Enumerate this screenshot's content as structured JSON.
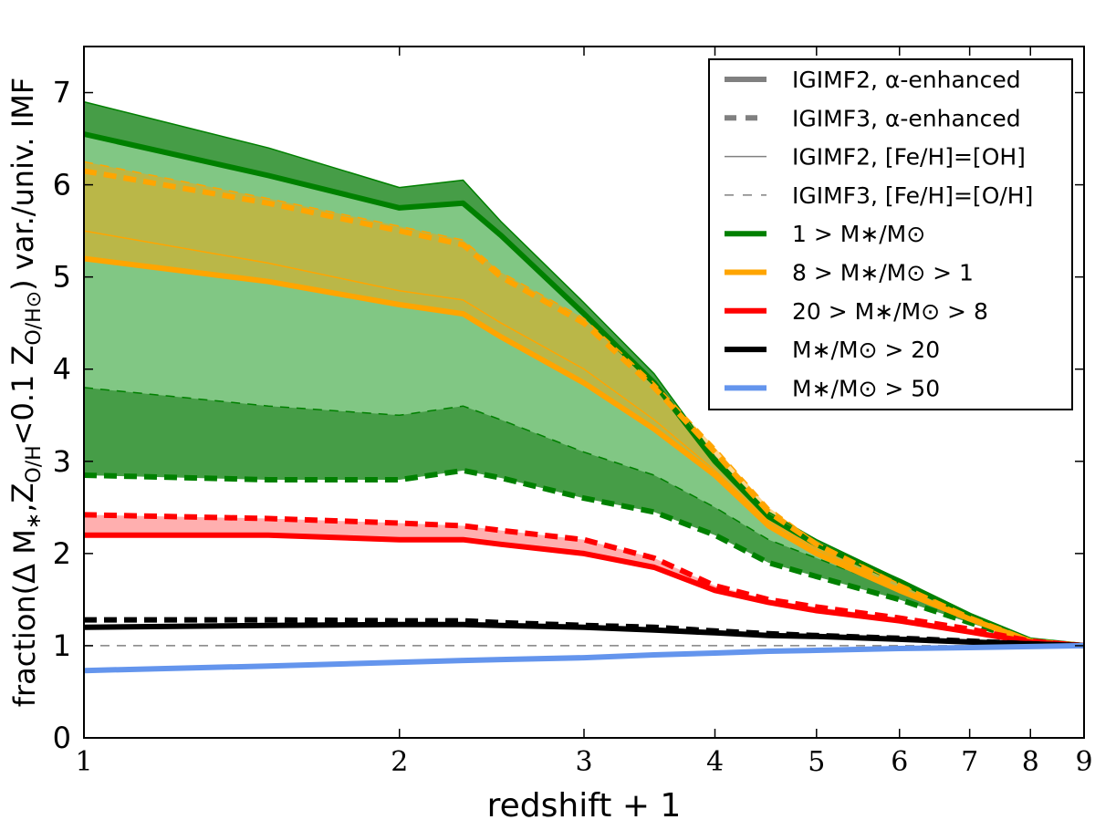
{
  "chart_data": {
    "type": "line",
    "xlabel": "redshift + 1",
    "ylabel": "fraction(Δ M∗,Z_O/H<0.1 Z_O/H⊙) var./univ. IMF",
    "ylabel_parts": [
      "fraction(Δ M",
      "∗",
      ",Z",
      "O/H",
      "<0.1 Z",
      "O/H⊙",
      ") var./univ. IMF"
    ],
    "xscale": "log",
    "xlim": [
      1,
      9
    ],
    "ylim": [
      0,
      7.5
    ],
    "xticks": [
      1,
      2,
      3,
      4,
      5,
      6,
      7,
      8,
      9
    ],
    "yticks": [
      0,
      1,
      2,
      3,
      4,
      5,
      6,
      7
    ],
    "grid": false,
    "legend_placement": "top-right",
    "reference_line": {
      "y": 1,
      "color": "#808080",
      "style": "dashed"
    },
    "x": [
      1,
      1.5,
      2,
      2.3,
      2.5,
      3,
      3.5,
      4,
      4.5,
      5,
      6,
      7,
      8,
      9
    ],
    "series": [
      {
        "group": "1 > M∗/M⊙",
        "model": "IGIMF2, [Fe/H]=[OH]",
        "color": "#008000",
        "style": "thin-solid",
        "values": [
          6.9,
          6.4,
          5.97,
          6.05,
          5.6,
          4.72,
          3.95,
          3.05,
          2.45,
          2.15,
          1.72,
          1.35,
          1.07,
          1.0
        ]
      },
      {
        "group": "1 > M∗/M⊙",
        "model": "IGIMF2, α-enhanced",
        "color": "#008000",
        "style": "thick-solid",
        "values": [
          6.55,
          6.1,
          5.75,
          5.8,
          5.45,
          4.6,
          3.85,
          3.0,
          2.4,
          2.1,
          1.7,
          1.33,
          1.06,
          1.0
        ]
      },
      {
        "group": "1 > M∗/M⊙",
        "model": "IGIMF3, [Fe/H]=[O/H]",
        "color": "#008000",
        "style": "thin-dashed",
        "values": [
          3.8,
          3.6,
          3.5,
          3.6,
          3.45,
          3.1,
          2.85,
          2.5,
          2.15,
          1.95,
          1.6,
          1.28,
          1.05,
          1.0
        ]
      },
      {
        "group": "1 > M∗/M⊙",
        "model": "IGIMF3, α-enhanced",
        "color": "#008000",
        "style": "thick-dashed",
        "values": [
          2.85,
          2.8,
          2.8,
          2.9,
          2.82,
          2.6,
          2.45,
          2.2,
          1.9,
          1.75,
          1.5,
          1.25,
          1.04,
          1.0
        ]
      },
      {
        "group": "8 > M∗/M⊙ > 1",
        "model": "IGIMF3, [Fe/H]=[O/H]",
        "color": "#FFA500",
        "style": "thin-dashed",
        "values": [
          6.25,
          5.85,
          5.55,
          5.4,
          5.05,
          4.55,
          3.85,
          3.15,
          2.5,
          2.12,
          1.67,
          1.31,
          1.05,
          1.0
        ]
      },
      {
        "group": "8 > M∗/M⊙ > 1",
        "model": "IGIMF3, α-enhanced",
        "color": "#FFA500",
        "style": "thick-dashed",
        "values": [
          6.15,
          5.8,
          5.5,
          5.35,
          5.0,
          4.5,
          3.8,
          3.1,
          2.45,
          2.1,
          1.65,
          1.3,
          1.05,
          1.0
        ]
      },
      {
        "group": "8 > M∗/M⊙ > 1",
        "model": "IGIMF2, [Fe/H]=[OH]",
        "color": "#FFA500",
        "style": "thin-solid",
        "values": [
          5.5,
          5.15,
          4.85,
          4.75,
          4.5,
          4.0,
          3.45,
          2.9,
          2.35,
          2.05,
          1.62,
          1.3,
          1.05,
          1.0
        ]
      },
      {
        "group": "8 > M∗/M⊙ > 1",
        "model": "IGIMF2, α-enhanced",
        "color": "#FFA500",
        "style": "thick-solid",
        "values": [
          5.2,
          4.95,
          4.7,
          4.6,
          4.35,
          3.85,
          3.35,
          2.85,
          2.3,
          2.0,
          1.6,
          1.29,
          1.05,
          1.0
        ]
      },
      {
        "group": "20 > M∗/M⊙ > 8",
        "model": "IGIMF3, α-enhanced",
        "color": "#FF0000",
        "style": "thick-dashed",
        "values": [
          2.42,
          2.38,
          2.33,
          2.3,
          2.25,
          2.15,
          1.95,
          1.65,
          1.5,
          1.42,
          1.3,
          1.18,
          1.05,
          1.0
        ]
      },
      {
        "group": "20 > M∗/M⊙ > 8",
        "model": "IGIMF2, α-enhanced",
        "color": "#FF0000",
        "style": "thick-solid",
        "values": [
          2.2,
          2.2,
          2.15,
          2.15,
          2.1,
          2.0,
          1.85,
          1.6,
          1.47,
          1.38,
          1.27,
          1.15,
          1.04,
          1.0
        ]
      },
      {
        "group": "M∗/M⊙ > 20",
        "model": "IGIMF3, α-enhanced",
        "color": "#000000",
        "style": "thick-dashed",
        "values": [
          1.28,
          1.28,
          1.27,
          1.27,
          1.25,
          1.22,
          1.2,
          1.16,
          1.13,
          1.11,
          1.08,
          1.05,
          1.02,
          1.0
        ]
      },
      {
        "group": "M∗/M⊙ > 20",
        "model": "IGIMF2, α-enhanced",
        "color": "#000000",
        "style": "thick-solid",
        "values": [
          1.2,
          1.22,
          1.23,
          1.23,
          1.22,
          1.2,
          1.17,
          1.14,
          1.11,
          1.1,
          1.07,
          1.04,
          1.02,
          1.0
        ]
      },
      {
        "group": "M∗/M⊙ > 50",
        "model": "IGIMF2, α-enhanced",
        "color": "#6495ED",
        "style": "thick-solid",
        "values": [
          0.73,
          0.78,
          0.82,
          0.84,
          0.85,
          0.87,
          0.9,
          0.92,
          0.94,
          0.95,
          0.97,
          0.98,
          0.99,
          1.0
        ]
      }
    ],
    "legend": [
      {
        "label": "IGIMF2, α-enhanced",
        "color": "#808080",
        "style": "thick-solid"
      },
      {
        "label": "IGIMF3, α-enhanced",
        "color": "#808080",
        "style": "thick-dashed"
      },
      {
        "label": "IGIMF2, [Fe/H]=[OH]",
        "color": "#808080",
        "style": "thin-solid"
      },
      {
        "label": "IGIMF3, [Fe/H]=[O/H]",
        "color": "#808080",
        "style": "thin-dashed"
      },
      {
        "label": "1 > M∗/M⊙",
        "color": "#008000",
        "style": "thick-solid"
      },
      {
        "label": "8 > M∗/M⊙ > 1",
        "color": "#FFA500",
        "style": "thick-solid"
      },
      {
        "label": "20 > M∗/M⊙ > 8",
        "color": "#FF0000",
        "style": "thick-solid"
      },
      {
        "label": "M∗/M⊙ > 20",
        "color": "#000000",
        "style": "thick-solid"
      },
      {
        "label": "M∗/M⊙ > 50",
        "color": "#6495ED",
        "style": "thick-solid"
      }
    ]
  }
}
